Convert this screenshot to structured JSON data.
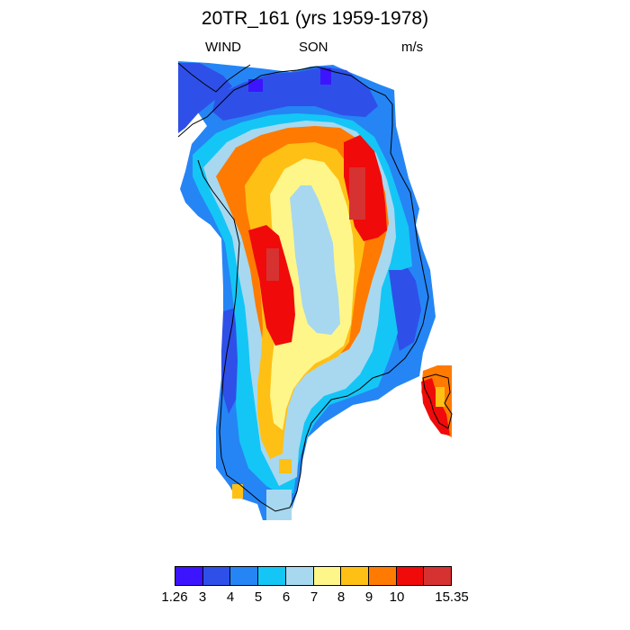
{
  "header": {
    "title": "20TR_161 (yrs 1959-1978)",
    "left_label": "WIND",
    "center_label": "SON",
    "right_label": "m/s"
  },
  "colorbar": {
    "colors": [
      "#3d14ff",
      "#2e50e8",
      "#2585f5",
      "#14c6f5",
      "#a7d8f0",
      "#fff68a",
      "#ffc015",
      "#ff7a00",
      "#f00a0a",
      "#d63232"
    ],
    "labels": [
      "1.26",
      "3",
      "4",
      "5",
      "6",
      "7",
      "8",
      "9",
      "10",
      "15.35"
    ]
  }
}
